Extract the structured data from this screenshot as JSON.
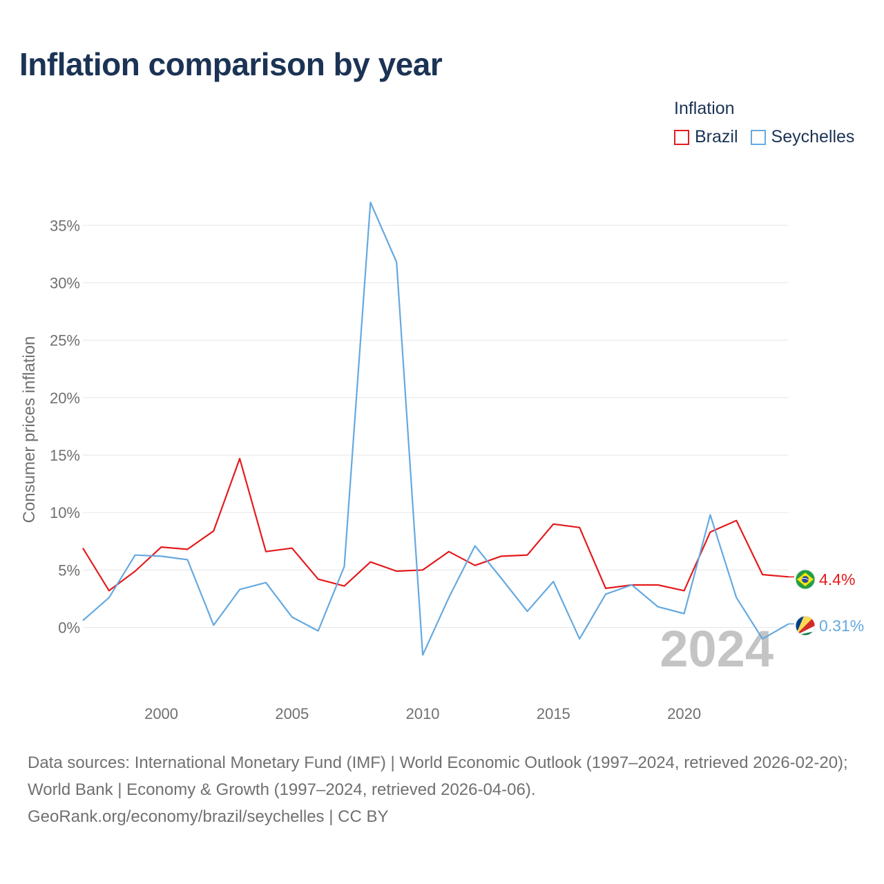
{
  "chart_data": {
    "type": "line",
    "title": "Inflation comparison by year",
    "xlabel": "",
    "ylabel": "Consumer prices inflation",
    "x": [
      1997,
      1998,
      1999,
      2000,
      2001,
      2002,
      2003,
      2004,
      2005,
      2006,
      2007,
      2008,
      2009,
      2010,
      2011,
      2012,
      2013,
      2014,
      2015,
      2016,
      2017,
      2018,
      2019,
      2020,
      2021,
      2022,
      2023,
      2024
    ],
    "xlim": [
      1997,
      2024
    ],
    "ylim": [
      -5.5,
      37
    ],
    "xticks": [
      2000,
      2005,
      2010,
      2015,
      2020
    ],
    "yticks": [
      0,
      5,
      10,
      15,
      20,
      25,
      30,
      35
    ],
    "ytick_labels": [
      "0%",
      "5%",
      "10%",
      "15%",
      "20%",
      "25%",
      "30%",
      "35%"
    ],
    "grid": true,
    "legend_title": "Inflation",
    "legend_position": "top-right",
    "year_watermark": "2024",
    "series": [
      {
        "name": "Brazil",
        "color": "#e41a1c",
        "end_label": "4.4%",
        "flag": "brazil-flag",
        "values": [
          6.9,
          3.2,
          4.9,
          7.0,
          6.8,
          8.4,
          14.7,
          6.6,
          6.9,
          4.2,
          3.6,
          5.7,
          4.9,
          5.0,
          6.6,
          5.4,
          6.2,
          6.3,
          9.0,
          8.7,
          3.4,
          3.7,
          3.7,
          3.2,
          8.3,
          9.3,
          4.6,
          4.4
        ]
      },
      {
        "name": "Seychelles",
        "color": "#65a9e0",
        "end_label": "0.31%",
        "flag": "seychelles-flag",
        "values": [
          0.6,
          2.6,
          6.3,
          6.2,
          5.9,
          0.2,
          3.3,
          3.9,
          0.9,
          -0.3,
          5.3,
          37.0,
          31.8,
          -2.4,
          2.6,
          7.1,
          4.3,
          1.4,
          4.0,
          -1.0,
          2.9,
          3.7,
          1.8,
          1.2,
          9.8,
          2.6,
          -1.0,
          0.31
        ]
      }
    ]
  },
  "footer": {
    "sources": "Data sources: International Monetary Fund (IMF) | World Economic Outlook (1997–2024, retrieved 2026-02-20); World Bank | Economy & Growth (1997–2024, retrieved 2026-04-06).",
    "credit": "GeoRank.org/economy/brazil/seychelles | CC BY"
  }
}
